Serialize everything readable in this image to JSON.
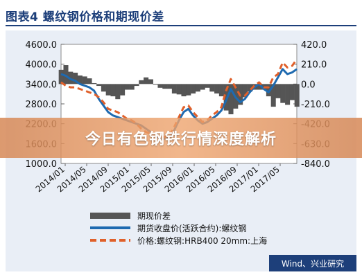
{
  "title": "图表4  螺纹钢价格和期现价差",
  "banner": "今日有色钢铁行情深度解析",
  "source": "Wind、兴业研究",
  "colors": {
    "spread": "#555555",
    "futures": "#1e6ab0",
    "spot": "#e0602a",
    "panel": "#e9eef6",
    "title": "#1d3f7a"
  },
  "chart_data": {
    "type": "line",
    "left_axis": {
      "min": 1000,
      "max": 4600,
      "ticks": [
        "4600.0",
        "4000.0",
        "3400.0",
        "2800.0",
        "2200.0",
        "1600.0",
        "1000.0"
      ]
    },
    "right_axis": {
      "min": -840,
      "max": 420,
      "ticks": [
        "420.0",
        "210.0",
        "0.0",
        "-210.0",
        "-420.0",
        "-630.0",
        "-840.0"
      ]
    },
    "x_ticks": [
      "2014/01",
      "2014/05",
      "2014/09",
      "2015/01",
      "2015/05",
      "2015/09",
      "2016/01",
      "2016/05",
      "2016/09",
      "2017/01",
      "2017/05"
    ],
    "legend": [
      {
        "key": "spread",
        "label": "期现价差"
      },
      {
        "key": "futures",
        "label": "期货收盘价(活跃合约):螺纹钢"
      },
      {
        "key": "spot",
        "label": "价格:螺纹钢:HRB400 20mm:上海"
      }
    ],
    "series": [
      {
        "name": "期货收盘价(活跃合约):螺纹钢",
        "axis": "left",
        "x": [
          0,
          1,
          2,
          3,
          4,
          5,
          6,
          7,
          8,
          9,
          10,
          11,
          12,
          13,
          14,
          15,
          16,
          17,
          18,
          19,
          20,
          21,
          22,
          23,
          24,
          25,
          26,
          27,
          28,
          29,
          30,
          31,
          32,
          33,
          34,
          35,
          36,
          37,
          38,
          39,
          40,
          41,
          42,
          43,
          44,
          45,
          46,
          47,
          48,
          49,
          50
        ],
        "values": [
          3700,
          3650,
          3550,
          3500,
          3400,
          3350,
          3300,
          3200,
          2950,
          2750,
          2550,
          2450,
          2400,
          2350,
          2300,
          2250,
          2200,
          2150,
          2050,
          1950,
          1850,
          1750,
          1750,
          1800,
          2000,
          2300,
          2550,
          2650,
          2450,
          2300,
          2200,
          2250,
          2350,
          2450,
          2600,
          2900,
          3250,
          3000,
          2850,
          2950,
          3150,
          3300,
          3400,
          3250,
          3150,
          3350,
          3600,
          3850,
          3700,
          3750,
          3850
        ]
      },
      {
        "name": "价格:螺纹钢:HRB400 20mm:上海",
        "axis": "left",
        "x": [
          0,
          1,
          2,
          3,
          4,
          5,
          6,
          7,
          8,
          9,
          10,
          11,
          12,
          13,
          14,
          15,
          16,
          17,
          18,
          19,
          20,
          21,
          22,
          23,
          24,
          25,
          26,
          27,
          28,
          29,
          30,
          31,
          32,
          33,
          34,
          35,
          36,
          37,
          38,
          39,
          40,
          41,
          42,
          43,
          44,
          45,
          46,
          47,
          48,
          49,
          50
        ],
        "values": [
          3450,
          3350,
          3300,
          3300,
          3250,
          3200,
          3150,
          3100,
          3000,
          2850,
          2650,
          2600,
          2550,
          2450,
          2350,
          2300,
          2200,
          2050,
          1950,
          1900,
          1850,
          1800,
          1800,
          1850,
          2100,
          2400,
          2700,
          2750,
          2550,
          2400,
          2250,
          2300,
          2450,
          2550,
          2700,
          3200,
          3550,
          3300,
          3050,
          3050,
          3200,
          3350,
          3450,
          3300,
          3300,
          3600,
          3700,
          4050,
          3900,
          3950,
          4150
        ]
      },
      {
        "name": "期现价差",
        "axis": "right",
        "x": [
          0,
          1,
          2,
          3,
          4,
          5,
          6,
          7,
          8,
          9,
          10,
          11,
          12,
          13,
          14,
          15,
          16,
          17,
          18,
          19,
          20,
          21,
          22,
          23,
          24,
          25,
          26,
          27,
          28,
          29,
          30,
          31,
          32,
          33,
          34,
          35,
          36,
          37,
          38,
          39,
          40,
          41,
          42,
          43,
          44,
          45,
          46,
          47,
          48,
          49,
          50
        ],
        "values": [
          150,
          200,
          130,
          120,
          90,
          80,
          60,
          10,
          -20,
          -80,
          -120,
          -130,
          -160,
          -120,
          -60,
          -60,
          -20,
          40,
          70,
          50,
          0,
          -40,
          -50,
          -50,
          -100,
          -110,
          -130,
          -120,
          -100,
          -80,
          -60,
          -40,
          -80,
          -100,
          -130,
          -280,
          -320,
          -260,
          -220,
          -140,
          -80,
          -60,
          -60,
          -60,
          -130,
          -240,
          -150,
          -200,
          -220,
          -170,
          -240
        ]
      }
    ]
  }
}
